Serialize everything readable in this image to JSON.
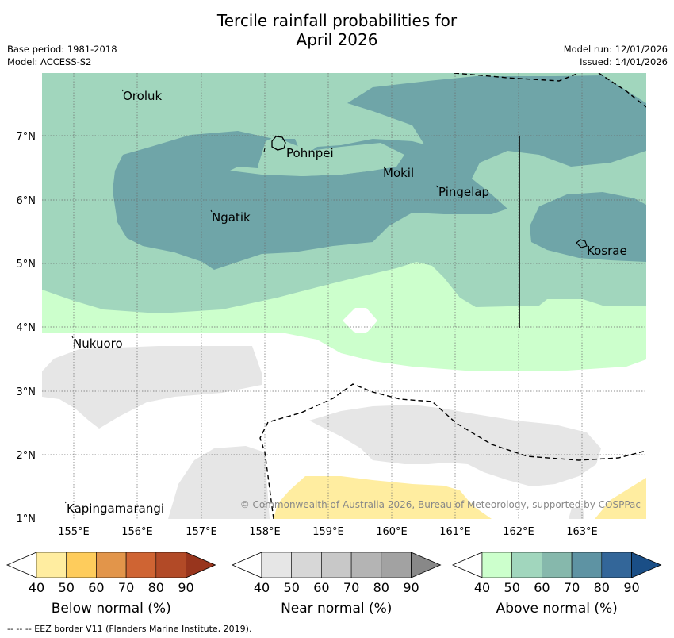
{
  "title": {
    "line1": "Tercile rainfall probabilities for",
    "line2": "April 2026"
  },
  "meta": {
    "base_period": "Base period: 1981-2018",
    "model": "Model: ACCESS-S2",
    "model_run": "Model run: 12/01/2026",
    "issued": "Issued: 14/01/2026"
  },
  "map": {
    "lat_labels": [
      "7°N",
      "6°N",
      "5°N",
      "4°N",
      "3°N",
      "2°N",
      "1°N"
    ],
    "lon_labels": [
      "155°E",
      "156°E",
      "157°E",
      "158°E",
      "159°E",
      "160°E",
      "161°E",
      "162°E",
      "163°E"
    ],
    "places": {
      "oroluk": "Oroluk",
      "pohnpei": "Pohnpei",
      "mokil": "Mokil",
      "pingelap": "Pingelap",
      "ngatik": "Ngatik",
      "kosrae": "Kosrae",
      "nukuoro": "Nukuoro",
      "kapingamarangi": "Kapingamarangi"
    },
    "copyright": "© Commonwealth of Australia 2026, Bureau of Meteorology, supported by COSPPac"
  },
  "legends": {
    "below": {
      "label": "Below normal (%)",
      "ticks": [
        "40",
        "50",
        "60",
        "70",
        "80",
        "90"
      ],
      "colors": [
        "#ffeda0",
        "#fecc5c",
        "#e2954a",
        "#cf6433",
        "#b24a27",
        "#98351d"
      ]
    },
    "near": {
      "label": "Near normal (%)",
      "ticks": [
        "40",
        "50",
        "60",
        "70",
        "80",
        "90"
      ],
      "colors": [
        "#e6e6e6",
        "#d7d7d7",
        "#c8c8c8",
        "#b4b4b4",
        "#a2a2a2",
        "#888888"
      ]
    },
    "above": {
      "label": "Above normal (%)",
      "ticks": [
        "40",
        "50",
        "60",
        "70",
        "80",
        "90"
      ],
      "colors": [
        "#ccffcc",
        "#a1d6bd",
        "#86b8ac",
        "#5e93a3",
        "#336699",
        "#1a4e86"
      ]
    }
  },
  "footnote": "-- -- -- EEZ border V11 (Flanders Marine Institute, 2019)."
}
